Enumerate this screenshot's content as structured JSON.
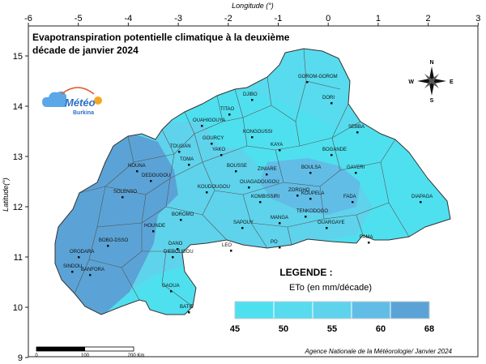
{
  "map": {
    "title_line1": "Evapotranspiration potentielle climatique à la deuxième",
    "title_line2": "décade de janvier 2024",
    "x_axis_title": "Longitude (°)",
    "y_axis_title": "Latitude(°)",
    "x_ticks": [
      "-6",
      "-5",
      "-4",
      "-3",
      "-2",
      "-1",
      "0",
      "1",
      "2",
      "3"
    ],
    "y_ticks": [
      "15",
      "14",
      "13",
      "12",
      "11",
      "10",
      "9"
    ],
    "credit": "Agence Nationale de la Météorologie/ Janvier 2024"
  },
  "logo": {
    "text": "Météo",
    "subtitle": "Burkina"
  },
  "compass": {
    "n": "N",
    "s": "S",
    "e": "E",
    "w": "W"
  },
  "legend": {
    "title": "LEGENDE :",
    "subtitle": "ETo (en mm/décade)",
    "values": [
      "45",
      "50",
      "55",
      "60",
      "68"
    ],
    "colors": [
      "#4fe0ef",
      "#58dbee",
      "#5fd3ec",
      "#62bde6",
      "#5ba3d6"
    ]
  },
  "scale_bar": {
    "labels": [
      "0",
      "100",
      "200 Km"
    ]
  },
  "places": [
    {
      "name": "GOROM-GOROM"
    },
    {
      "name": "DORI"
    },
    {
      "name": "DJIBO"
    },
    {
      "name": "TITAO"
    },
    {
      "name": "OUAHIGOUYA"
    },
    {
      "name": "GOURCY"
    },
    {
      "name": "KONGOUSSI"
    },
    {
      "name": "SEBBA"
    },
    {
      "name": "YAKO"
    },
    {
      "name": "KAYA"
    },
    {
      "name": "BOGANDE"
    },
    {
      "name": "TOUGAN"
    },
    {
      "name": "NOUNA"
    },
    {
      "name": "TOMA"
    },
    {
      "name": "DEDOUGOU"
    },
    {
      "name": "BOUSSE"
    },
    {
      "name": "ZINIARE"
    },
    {
      "name": "BOULSA"
    },
    {
      "name": "GAYERI"
    },
    {
      "name": "SOLENSO"
    },
    {
      "name": "KOUDOUGOU"
    },
    {
      "name": "OUAGADOUGOU"
    },
    {
      "name": "ZORGHO"
    },
    {
      "name": "KOMBISSIRI"
    },
    {
      "name": "FADA"
    },
    {
      "name": "DIAPAGA"
    },
    {
      "name": "BOROMO"
    },
    {
      "name": "SAPOUY"
    },
    {
      "name": "MANGA"
    },
    {
      "name": "TENKODOGO"
    },
    {
      "name": "KOUPELA"
    },
    {
      "name": "OUARGAYE"
    },
    {
      "name": "HOUNDE"
    },
    {
      "name": "BOBO-DSSO"
    },
    {
      "name": "DANO"
    },
    {
      "name": "DIEBOUGOU"
    },
    {
      "name": "LEO"
    },
    {
      "name": "PO"
    },
    {
      "name": "PAMA"
    },
    {
      "name": "ORODARA"
    },
    {
      "name": "SINDOU"
    },
    {
      "name": "BANFORA"
    },
    {
      "name": "GAOUA"
    },
    {
      "name": "BATIE"
    }
  ]
}
